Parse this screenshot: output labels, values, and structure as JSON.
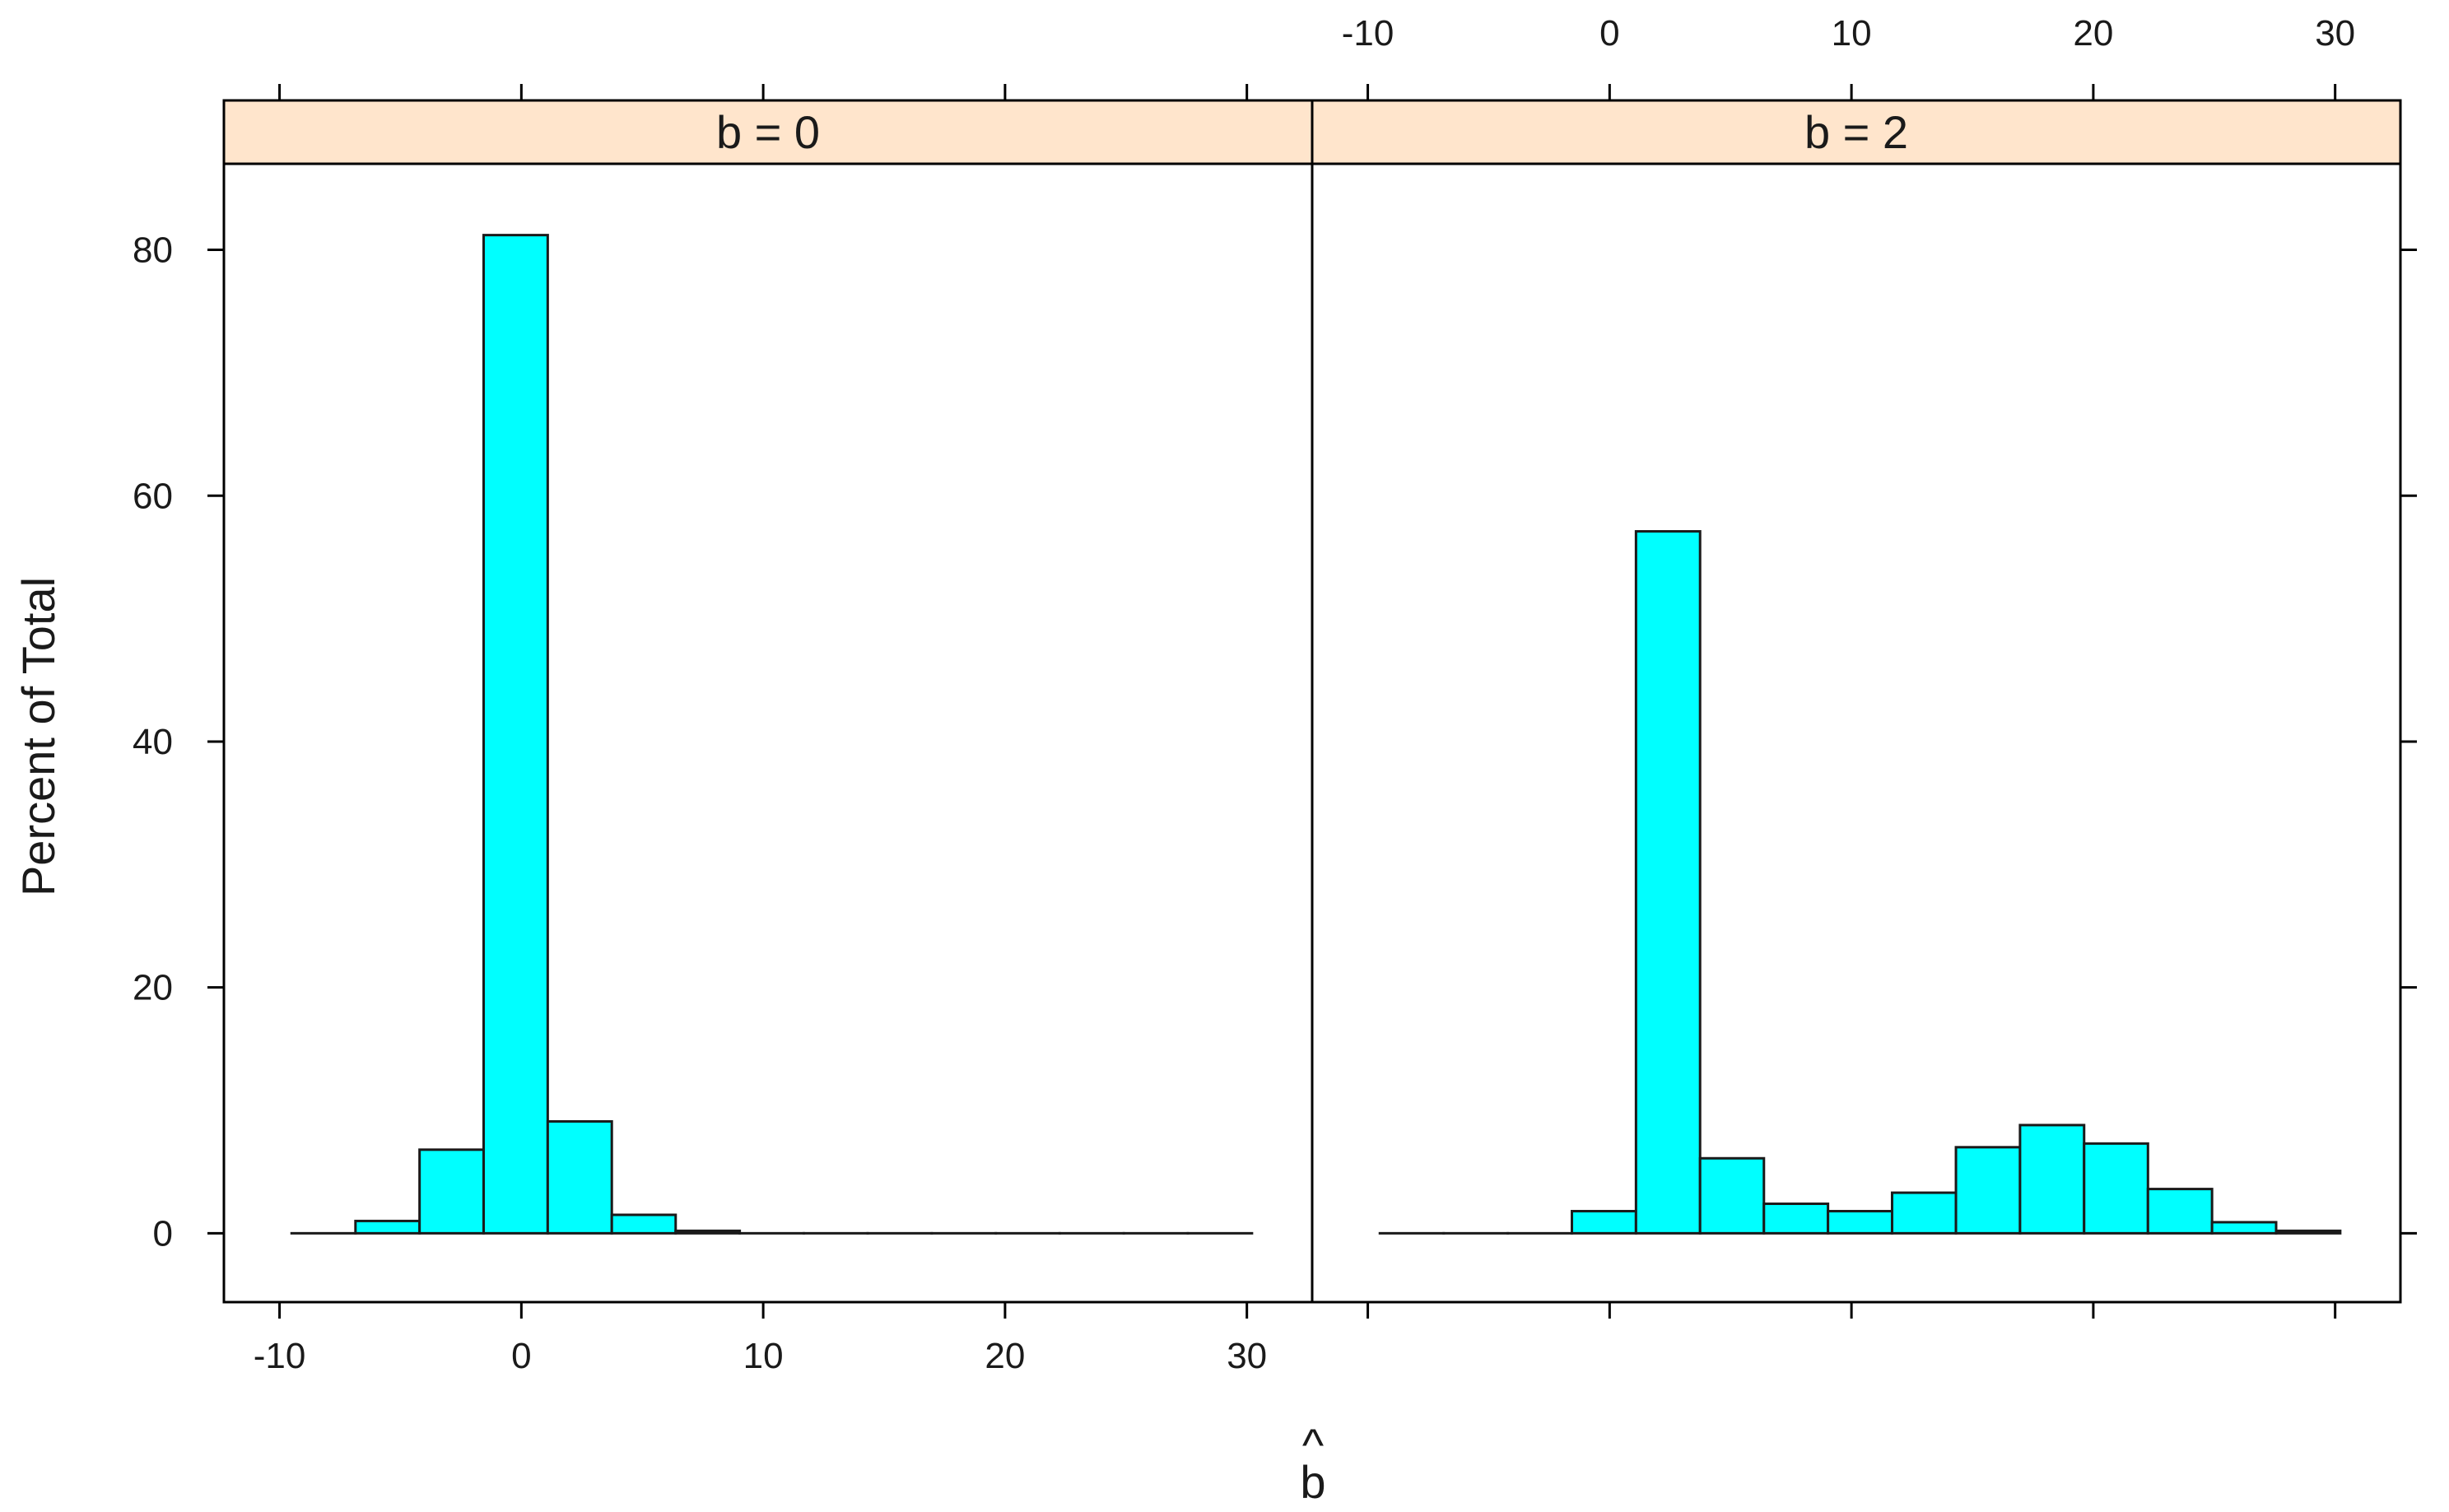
{
  "chart_data": {
    "type": "bar",
    "subtype": "histogram-trellis",
    "ylabel": "Percent of Total",
    "xlabel": "b",
    "xlabel_accent": "^",
    "x_ticks": [
      -10,
      0,
      10,
      20,
      30
    ],
    "y_ticks": [
      0,
      20,
      40,
      60,
      80
    ],
    "xlim": [
      -12.3,
      32.7
    ],
    "ylim": [
      -5.6,
      87.0
    ],
    "bin_edges": [
      -9.5,
      -6.86,
      -4.21,
      -1.56,
      1.09,
      3.74,
      6.38,
      9.03,
      11.68,
      14.32,
      16.97,
      19.62,
      22.26,
      24.91,
      27.56,
      30.21
    ],
    "bar_fill": "#00ffff",
    "strip_fill": "#ffe5cc",
    "grid": false,
    "legend": "none",
    "panels": [
      {
        "strip": "b = 0",
        "values": [
          0.0,
          1.0,
          6.8,
          81.2,
          9.1,
          1.5,
          0.2,
          0.0,
          0.0,
          0.0,
          0.0,
          0.0,
          0.0,
          0.0,
          0.0
        ]
      },
      {
        "strip": "b = 2",
        "values": [
          0.0,
          0.0,
          0.0,
          1.8,
          57.1,
          6.1,
          2.4,
          1.8,
          3.3,
          7.0,
          8.8,
          7.3,
          3.6,
          0.9,
          0.2
        ]
      }
    ]
  }
}
